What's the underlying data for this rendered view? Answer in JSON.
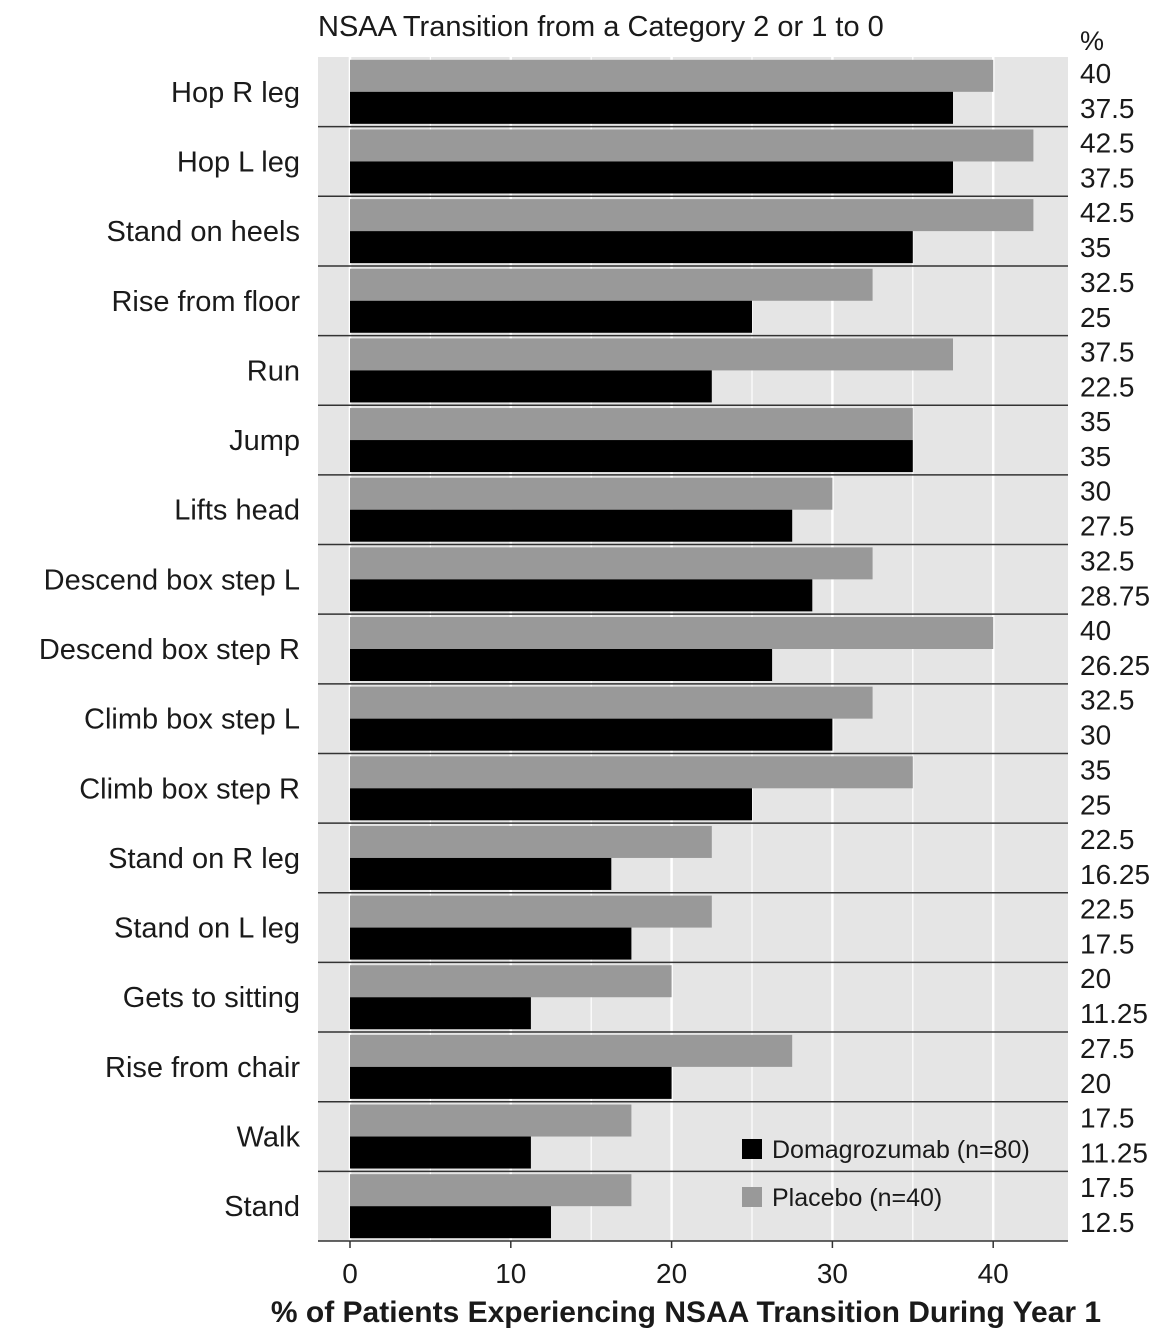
{
  "chart_data": {
    "type": "bar",
    "orientation": "horizontal",
    "title": "NSAA Transition from a Category 2 or 1 to 0",
    "xlabel": "% of Patients Experiencing NSAA Transition During Year 1",
    "value_column_header": "%",
    "xlim": [
      -2,
      44.5
    ],
    "xticks": [
      0,
      10,
      20,
      30,
      40
    ],
    "grid": true,
    "legend_position": "bottom-right",
    "categories": [
      "Hop R leg",
      "Hop L leg",
      "Stand on heels",
      "Rise from floor",
      "Run",
      "Jump",
      "Lifts head",
      "Descend box step L",
      "Descend box step R",
      "Climb box step L",
      "Climb box step R",
      "Stand on R leg",
      "Stand on L leg",
      "Gets to sitting",
      "Rise from chair",
      "Walk",
      "Stand"
    ],
    "series": [
      {
        "name": "Placebo (n=40)",
        "color": "#999999",
        "values": [
          40,
          42.5,
          42.5,
          32.5,
          37.5,
          35,
          30,
          32.5,
          40,
          32.5,
          35,
          22.5,
          22.5,
          20,
          27.5,
          17.5,
          17.5
        ]
      },
      {
        "name": "Domagrozumab (n=80)",
        "color": "#000000",
        "values": [
          37.5,
          37.5,
          35,
          25,
          22.5,
          35,
          27.5,
          28.75,
          26.25,
          30,
          25,
          16.25,
          17.5,
          11.25,
          20,
          11.25,
          12.5
        ]
      }
    ],
    "value_labels": [
      [
        "40",
        "37.5"
      ],
      [
        "42.5",
        "37.5"
      ],
      [
        "42.5",
        "35"
      ],
      [
        "32.5",
        "25"
      ],
      [
        "37.5",
        "22.5"
      ],
      [
        "35",
        "35"
      ],
      [
        "30",
        "27.5"
      ],
      [
        "32.5",
        "28.75"
      ],
      [
        "40",
        "26.25"
      ],
      [
        "32.5",
        "30"
      ],
      [
        "35",
        "25"
      ],
      [
        "22.5",
        "16.25"
      ],
      [
        "22.5",
        "17.5"
      ],
      [
        "20",
        "11.25"
      ],
      [
        "27.5",
        "20"
      ],
      [
        "17.5",
        "11.25"
      ],
      [
        "17.5",
        "12.5"
      ]
    ],
    "legend": [
      "Domagrozumab (n=80)",
      "Placebo (n=40)"
    ],
    "panel_color": "#e5e5e5",
    "grid_color": "#ffffff",
    "separator_color": "#333333"
  }
}
